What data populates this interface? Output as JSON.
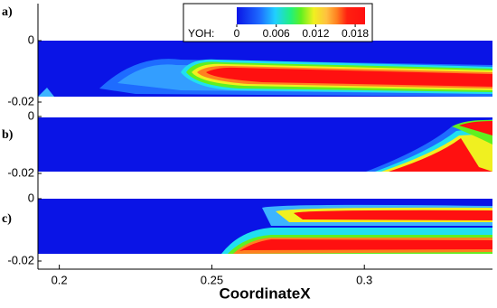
{
  "chart_data": {
    "type": "contour",
    "x_label": "CoordinateX",
    "xlim": [
      0.193,
      0.342
    ],
    "xticks": [
      0.2,
      0.25,
      0.3
    ],
    "colorbar": {
      "label": "YOH:",
      "clim": [
        0,
        0.0195
      ],
      "ticks": [
        0,
        0.006,
        0.012,
        0.018
      ]
    },
    "panels": [
      {
        "label": "a)",
        "ylim": [
          -0.02,
          0
        ],
        "yticks": [
          0,
          -0.02
        ]
      },
      {
        "label": "b)",
        "ylim": [
          -0.02,
          0
        ],
        "yticks": [
          0,
          -0.02
        ]
      },
      {
        "label": "c)",
        "ylim": [
          -0.02,
          0
        ],
        "yticks": [
          0,
          -0.02
        ]
      }
    ]
  }
}
